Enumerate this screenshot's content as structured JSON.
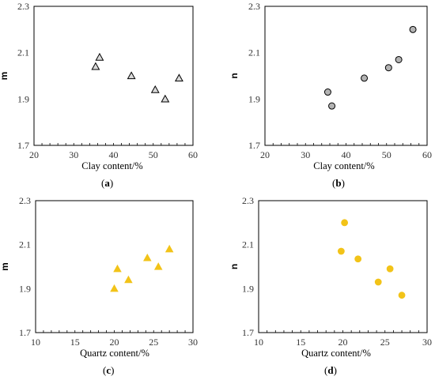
{
  "chart_data": [
    {
      "type": "scatter",
      "panel": "a",
      "xlabel": "Clay content/%",
      "ylabel": "m",
      "xlim": [
        20,
        60
      ],
      "ylim": [
        1.7,
        2.3
      ],
      "xticks": [
        "20",
        "30",
        "40",
        "50",
        "60"
      ],
      "yticks": [
        "1.7",
        "1.9",
        "2.1",
        "2.3"
      ],
      "marker": "triangle-open",
      "color": "#555555",
      "points": [
        {
          "x": 35.5,
          "y": 2.04
        },
        {
          "x": 36.5,
          "y": 2.08
        },
        {
          "x": 44.5,
          "y": 2.0
        },
        {
          "x": 50.5,
          "y": 1.94
        },
        {
          "x": 53.0,
          "y": 1.9
        },
        {
          "x": 56.5,
          "y": 1.99
        }
      ]
    },
    {
      "type": "scatter",
      "panel": "b",
      "xlabel": "Clay content/%",
      "ylabel": "n",
      "xlim": [
        20,
        60
      ],
      "ylim": [
        1.7,
        2.3
      ],
      "xticks": [
        "20",
        "30",
        "40",
        "50",
        "60"
      ],
      "yticks": [
        "1.7",
        "1.9",
        "2.1",
        "2.3"
      ],
      "marker": "circle",
      "color": "#b3b3b3",
      "points": [
        {
          "x": 35.5,
          "y": 1.93
        },
        {
          "x": 36.5,
          "y": 1.87
        },
        {
          "x": 44.5,
          "y": 1.99
        },
        {
          "x": 50.5,
          "y": 2.035
        },
        {
          "x": 53.0,
          "y": 2.07
        },
        {
          "x": 56.5,
          "y": 2.2
        }
      ]
    },
    {
      "type": "scatter",
      "panel": "c",
      "xlabel": "Quartz content/%",
      "ylabel": "m",
      "xlim": [
        10,
        30
      ],
      "ylim": [
        1.7,
        2.3
      ],
      "xticks": [
        "10",
        "15",
        "20",
        "25",
        "30"
      ],
      "yticks": [
        "1.7",
        "1.9",
        "2.1",
        "2.3"
      ],
      "marker": "triangle",
      "color": "#f2c318",
      "points": [
        {
          "x": 20.0,
          "y": 1.9
        },
        {
          "x": 20.4,
          "y": 1.99
        },
        {
          "x": 21.8,
          "y": 1.94
        },
        {
          "x": 24.2,
          "y": 2.04
        },
        {
          "x": 25.6,
          "y": 2.0
        },
        {
          "x": 27.0,
          "y": 2.08
        }
      ]
    },
    {
      "type": "scatter",
      "panel": "d",
      "xlabel": "Quartz content/%",
      "ylabel": "n",
      "xlim": [
        10,
        30
      ],
      "ylim": [
        1.7,
        2.3
      ],
      "xticks": [
        "10",
        "15",
        "20",
        "25",
        "30"
      ],
      "yticks": [
        "1.7",
        "1.9",
        "2.1",
        "2.3"
      ],
      "marker": "circle",
      "color": "#f2c318",
      "points": [
        {
          "x": 19.8,
          "y": 2.07
        },
        {
          "x": 20.2,
          "y": 2.2
        },
        {
          "x": 21.8,
          "y": 2.035
        },
        {
          "x": 24.2,
          "y": 1.93
        },
        {
          "x": 25.6,
          "y": 1.99
        },
        {
          "x": 27.0,
          "y": 1.87
        }
      ]
    }
  ]
}
